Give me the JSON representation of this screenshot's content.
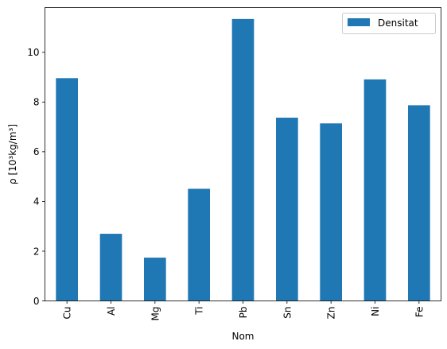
{
  "chart_data": {
    "type": "bar",
    "title": "",
    "xlabel": "Nom",
    "ylabel": "ρ  [10³kg/m³]",
    "categories": [
      "Cu",
      "Al",
      "Mg",
      "Ti",
      "Pb",
      "Sn",
      "Zn",
      "Ni",
      "Fe"
    ],
    "series": [
      {
        "name": "Densitat",
        "values": [
          8.96,
          2.7,
          1.74,
          4.51,
          11.34,
          7.37,
          7.14,
          8.91,
          7.87
        ],
        "color": "#1f77b4"
      }
    ],
    "ylim": [
      0,
      11.8
    ],
    "yticks": [
      0,
      2,
      4,
      6,
      8,
      10
    ],
    "grid": false,
    "legend": "top-right"
  }
}
